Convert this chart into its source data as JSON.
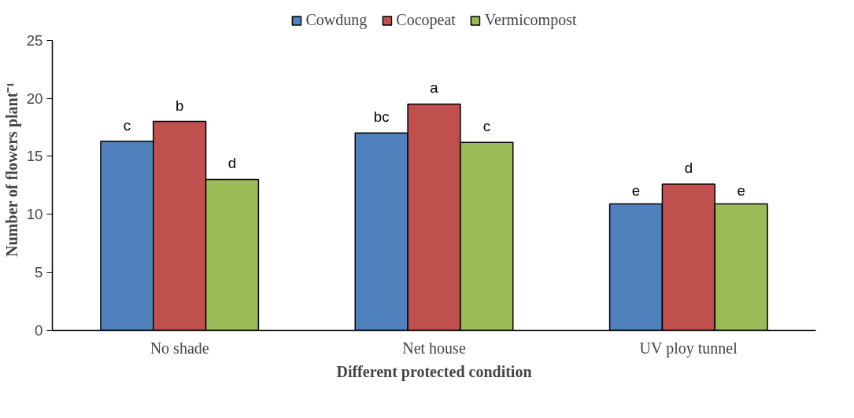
{
  "chart_data": {
    "type": "bar",
    "xlabel": "Different protected condition",
    "ylabel": "Number of flowers plant⁻¹",
    "categories": [
      "No shade",
      "Net house",
      "UV ploy tunnel"
    ],
    "series": [
      {
        "name": "Cowdung",
        "color": "#4f81bd",
        "values": [
          16.3,
          17.0,
          10.9
        ],
        "value_labels": [
          "c",
          "bc",
          "e"
        ]
      },
      {
        "name": "Cocopeat",
        "color": "#c0504d",
        "values": [
          18.0,
          19.5,
          12.6
        ],
        "value_labels": [
          "b",
          "a",
          "d"
        ]
      },
      {
        "name": "Vermicompost",
        "color": "#9bbb59",
        "values": [
          13.0,
          16.2,
          10.9
        ],
        "value_labels": [
          "d",
          "c",
          "e"
        ]
      }
    ],
    "ylim": [
      0,
      25
    ],
    "yticks": [
      0,
      5,
      10,
      15,
      20,
      25
    ],
    "grid": false,
    "legend": "top"
  }
}
